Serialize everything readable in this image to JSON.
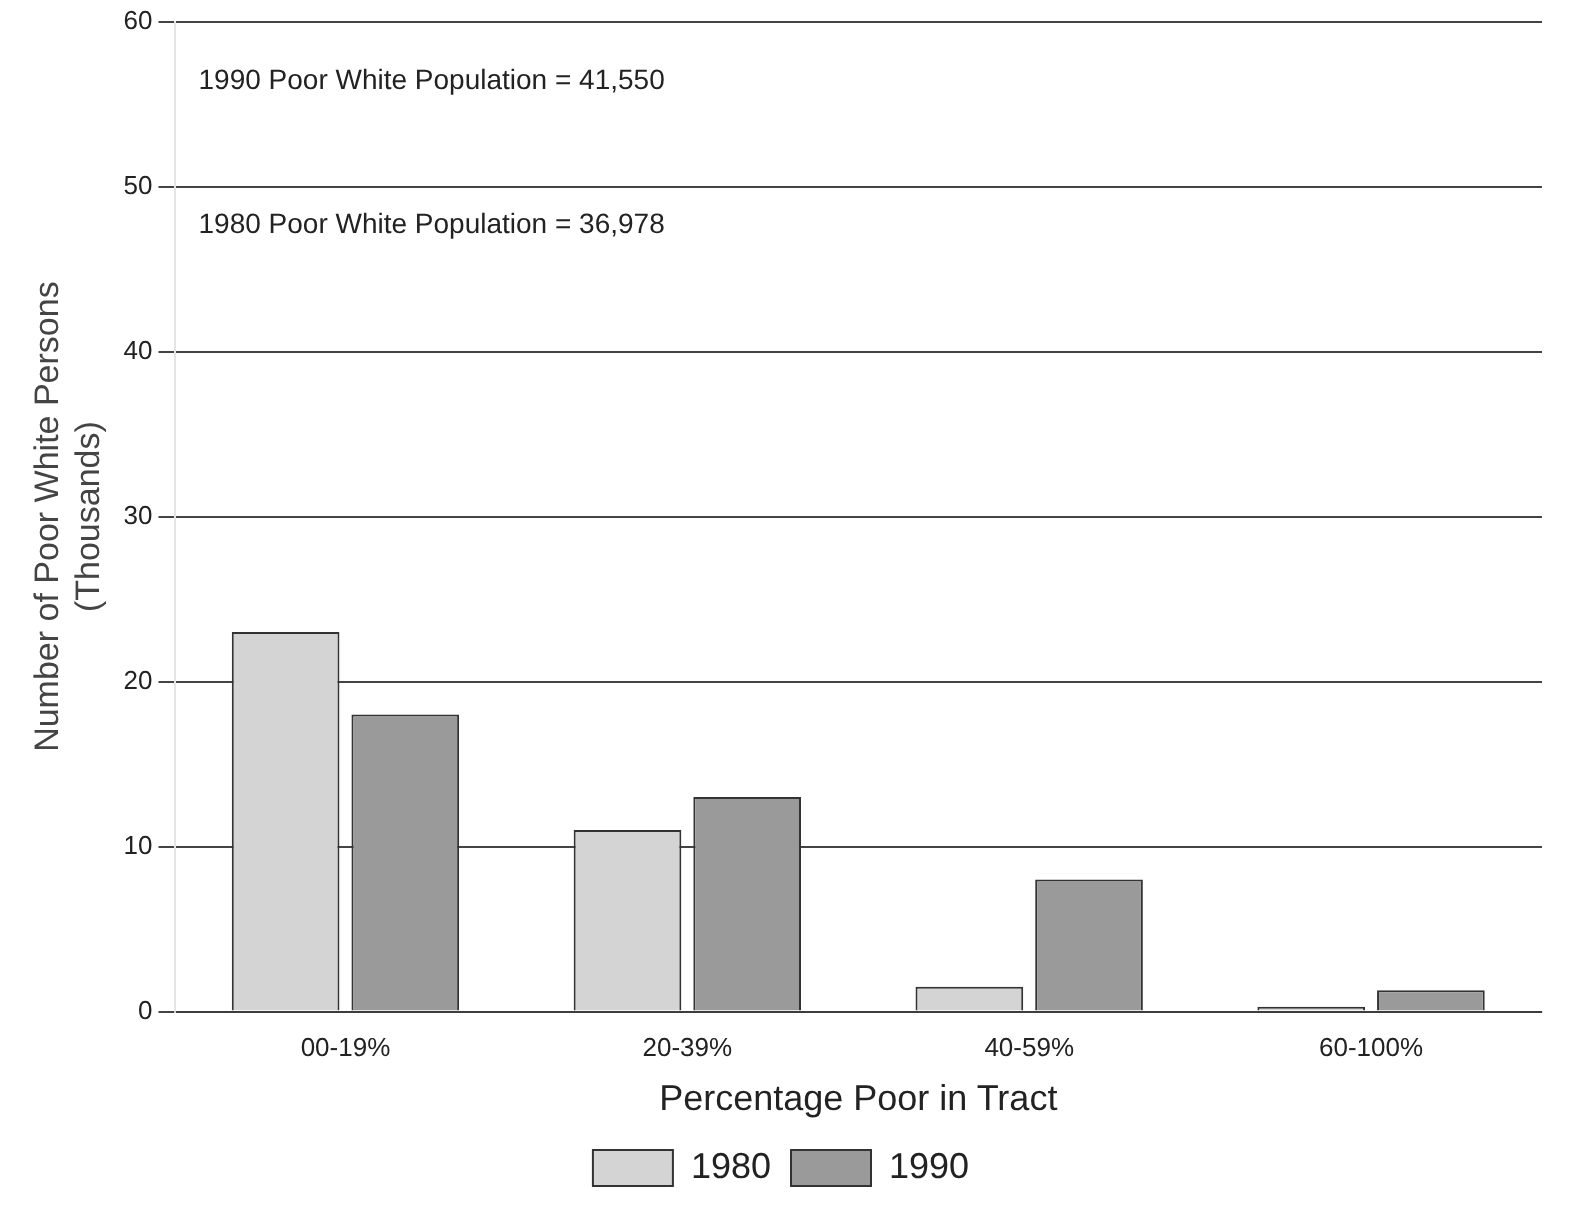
{
  "chart_data": {
    "type": "bar",
    "xlabel": "Percentage Poor in Tract",
    "ylabel": "Number of Poor White Persons\n(Thousands)",
    "categories": [
      "00-19%",
      "20-39%",
      "40-59%",
      "60-100%"
    ],
    "series": [
      {
        "name": "1980",
        "color": "#d4d4d4",
        "values": [
          23,
          11,
          1.5,
          0.3
        ]
      },
      {
        "name": "1990",
        "color": "#9a9a9a",
        "values": [
          18,
          13,
          8,
          1.3
        ]
      }
    ],
    "ylim": [
      0,
      60
    ],
    "yticks": [
      0,
      10,
      20,
      30,
      40,
      50,
      60
    ],
    "grid": "y",
    "legend": "bottom",
    "annotations": [
      "1990 Poor White Population = 41,550",
      "1980 Poor White Population = 36,978"
    ]
  }
}
